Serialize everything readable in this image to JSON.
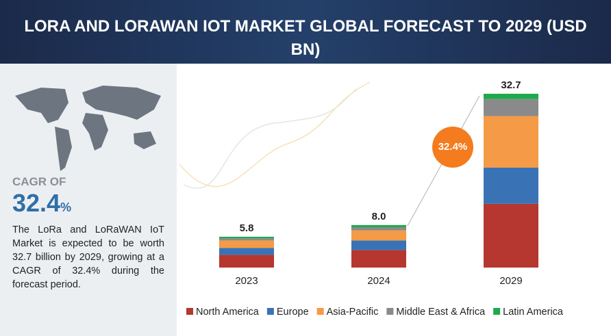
{
  "chart_data": {
    "type": "stacked-bar",
    "title": "LORA AND LORAWAN IOT MARKET GLOBAL FORECAST TO 2029 (USD BN)",
    "categories": [
      "2023",
      "2024",
      "2029"
    ],
    "series": [
      {
        "name": "North America",
        "color": "#b5372f",
        "values": [
          2.4,
          3.3,
          12.0
        ]
      },
      {
        "name": "Europe",
        "color": "#3a73b5",
        "values": [
          1.3,
          1.8,
          6.8
        ]
      },
      {
        "name": "Asia-Pacific",
        "color": "#f59a47",
        "values": [
          1.4,
          1.9,
          9.7
        ]
      },
      {
        "name": "Middle East & Africa",
        "color": "#8a8a8a",
        "values": [
          0.4,
          0.6,
          3.2
        ]
      },
      {
        "name": "Latin America",
        "color": "#1eaa4b",
        "values": [
          0.3,
          0.4,
          1.0
        ]
      }
    ],
    "totals": {
      "values": [
        5.8,
        8,
        32.7
      ],
      "value_labels": [
        "5.8",
        "8.0",
        "32.7"
      ]
    },
    "cagr_badge": "32.4%",
    "cagr_label": "CAGR OF",
    "cagr_value": "32.4",
    "cagr_unit": "%",
    "description": "The LoRa and LoRaWAN IoT Market is expected to be worth 32.7 billion by 2029, growing at a CAGR of 32.4% during the forecast period."
  }
}
